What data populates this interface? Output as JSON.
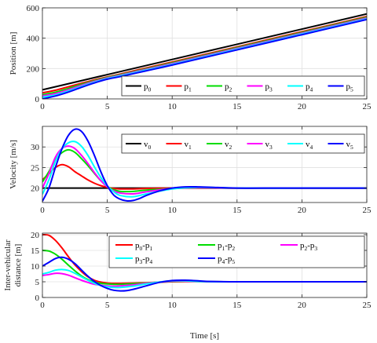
{
  "chart_data": [
    {
      "type": "line",
      "ylabel": "Position [m]",
      "xlabel": "",
      "xlim": [
        0,
        25
      ],
      "ylim": [
        0,
        600
      ],
      "xticks": [
        0,
        5,
        10,
        15,
        20,
        25
      ],
      "yticks": [
        0,
        200,
        400,
        600
      ],
      "grid": true,
      "legend_placement": "bottom-right",
      "legend_layout": "row",
      "series": [
        {
          "name": "p",
          "sub": "0",
          "color": "#000000",
          "x": [
            0,
            5,
            25
          ],
          "y": [
            60,
            160,
            560
          ]
        },
        {
          "name": "p",
          "sub": "1",
          "color": "#ff0000",
          "x": [
            0,
            1,
            2,
            3,
            4,
            5,
            6,
            8,
            10,
            15,
            20,
            25
          ],
          "y": [
            40,
            57,
            80,
            103,
            125,
            145,
            164,
            204,
            243,
            343,
            443,
            543
          ]
        },
        {
          "name": "p",
          "sub": "2",
          "color": "#00dd00",
          "x": [
            0,
            1,
            2,
            3,
            4,
            5,
            6,
            8,
            10,
            15,
            20,
            25
          ],
          "y": [
            28,
            44,
            69,
            96,
            120,
            142,
            160,
            199,
            238,
            338,
            438,
            538
          ]
        },
        {
          "name": "p",
          "sub": "3",
          "color": "#ff00ff",
          "x": [
            0,
            1,
            2,
            3,
            4,
            5,
            6,
            8,
            10,
            15,
            20,
            25
          ],
          "y": [
            20,
            35,
            60,
            89,
            115,
            138,
            156,
            195,
            233,
            333,
            433,
            533
          ]
        },
        {
          "name": "p",
          "sub": "4",
          "color": "#00ffff",
          "x": [
            0,
            1,
            2,
            3,
            4,
            5,
            6,
            8,
            10,
            15,
            20,
            25
          ],
          "y": [
            12,
            26,
            52,
            82,
            110,
            134,
            152,
            190,
            228,
            328,
            428,
            528
          ]
        },
        {
          "name": "p",
          "sub": "5",
          "color": "#0000ff",
          "x": [
            0,
            1,
            2,
            3,
            4,
            5,
            6,
            8,
            10,
            15,
            20,
            25
          ],
          "y": [
            0,
            19,
            45,
            76,
            105,
            130,
            147,
            185,
            223,
            323,
            423,
            523
          ]
        }
      ]
    },
    {
      "type": "line",
      "ylabel": "Velocity [m/s]",
      "xlabel": "",
      "xlim": [
        0,
        25
      ],
      "ylim": [
        16.5,
        35
      ],
      "xticks": [
        0,
        5,
        10,
        15,
        20,
        25
      ],
      "yticks": [
        20,
        25,
        30
      ],
      "grid": true,
      "legend_placement": "top-right",
      "legend_layout": "row",
      "series": [
        {
          "name": "v",
          "sub": "0",
          "color": "#000000",
          "x": [
            0,
            25
          ],
          "y": [
            20,
            20
          ]
        },
        {
          "name": "v",
          "sub": "1",
          "color": "#ff0000",
          "x": [
            0,
            0.5,
            1,
            1.5,
            2,
            2.5,
            3,
            3.5,
            4,
            4.5,
            5,
            5.5,
            6,
            7,
            8,
            10,
            12,
            15,
            20,
            25
          ],
          "y": [
            22,
            23.5,
            25,
            25.7,
            25.2,
            24,
            23,
            22,
            21.2,
            20.6,
            20.2,
            19.9,
            19.8,
            19.8,
            19.9,
            20,
            20,
            20,
            20,
            20
          ]
        },
        {
          "name": "v",
          "sub": "2",
          "color": "#00dd00",
          "x": [
            0,
            0.5,
            1,
            1.5,
            2,
            2.5,
            3,
            3.5,
            4,
            4.5,
            5,
            5.5,
            6,
            7,
            8,
            10,
            12,
            15,
            20,
            25
          ],
          "y": [
            21.5,
            24,
            27,
            28.6,
            29.3,
            28.7,
            27.2,
            25.5,
            23.6,
            21.8,
            20.4,
            19.6,
            19.2,
            19.2,
            19.5,
            19.9,
            20.1,
            20,
            20,
            20
          ]
        },
        {
          "name": "v",
          "sub": "3",
          "color": "#ff00ff",
          "x": [
            0,
            0.5,
            1,
            1.5,
            2,
            2.5,
            3,
            3.5,
            4,
            4.5,
            5,
            5.5,
            6,
            7,
            8,
            10,
            12,
            15,
            20,
            25
          ],
          "y": [
            20,
            23.5,
            27.5,
            29.6,
            30.2,
            29.6,
            28,
            26,
            23.8,
            21.8,
            20.3,
            19.3,
            18.8,
            18.6,
            19.1,
            19.9,
            20.1,
            20,
            20,
            20
          ]
        },
        {
          "name": "v",
          "sub": "4",
          "color": "#00ffff",
          "x": [
            0,
            0.5,
            1,
            1.5,
            2,
            2.5,
            3,
            3.5,
            4,
            4.5,
            5,
            5.5,
            6,
            7,
            8,
            10,
            12,
            15,
            20,
            25
          ],
          "y": [
            18.5,
            22,
            26.5,
            29.5,
            31,
            31.3,
            30.2,
            28,
            25.2,
            22.6,
            20.5,
            19.1,
            18.2,
            17.9,
            18.6,
            19.8,
            20.2,
            20,
            20,
            20
          ]
        },
        {
          "name": "v",
          "sub": "5",
          "color": "#0000ff",
          "x": [
            0,
            0.5,
            1,
            1.5,
            2,
            2.5,
            3,
            3.5,
            4,
            4.5,
            5,
            5.5,
            6,
            6.5,
            7,
            7.5,
            8,
            9,
            10,
            11,
            12,
            13,
            15,
            18,
            20,
            25
          ],
          "y": [
            16.8,
            20,
            25,
            29.5,
            32.8,
            34.3,
            33.8,
            31.5,
            28,
            24,
            20.6,
            18.3,
            17.3,
            16.9,
            17,
            17.5,
            18.2,
            19.3,
            20,
            20.3,
            20.3,
            20.2,
            20,
            20,
            20,
            20
          ]
        }
      ]
    },
    {
      "type": "line",
      "ylabel": "Inter-vehicular distance [m]",
      "xlabel": "Time [s]",
      "xlim": [
        0,
        25
      ],
      "ylim": [
        0,
        20.5
      ],
      "xticks": [
        0,
        5,
        10,
        15,
        20,
        25
      ],
      "yticks": [
        0,
        5,
        10,
        15,
        20
      ],
      "grid": true,
      "legend_placement": "top-right",
      "legend_layout": "grid-3x2",
      "series": [
        {
          "name": "p",
          "sub": "0",
          "name2": "-p",
          "sub2": "1",
          "color": "#ff0000",
          "x": [
            0,
            0.5,
            1,
            1.5,
            2,
            2.5,
            3,
            3.5,
            4,
            4.5,
            5,
            5.5,
            6,
            7,
            8,
            9,
            10,
            11,
            12,
            14,
            15,
            20,
            25
          ],
          "y": [
            20,
            19.8,
            18.2,
            15.8,
            13,
            10.4,
            8.3,
            6.6,
            5.5,
            4.9,
            4.6,
            4.5,
            4.5,
            4.6,
            4.7,
            4.85,
            5,
            5.05,
            5.05,
            5,
            5,
            5,
            5
          ]
        },
        {
          "name": "p",
          "sub": "1",
          "name2": "-p",
          "sub2": "2",
          "color": "#00dd00",
          "x": [
            0,
            0.5,
            1,
            1.5,
            2,
            2.5,
            3,
            3.5,
            4,
            4.5,
            5,
            5.5,
            6,
            7,
            8,
            9,
            10,
            11,
            12,
            14,
            15,
            20,
            25
          ],
          "y": [
            15,
            14.8,
            13.8,
            12.2,
            10.3,
            8.5,
            6.9,
            5.7,
            4.9,
            4.5,
            4.3,
            4.2,
            4.2,
            4.4,
            4.6,
            4.9,
            5.1,
            5.2,
            5.1,
            5,
            5,
            5,
            5
          ]
        },
        {
          "name": "p",
          "sub": "2",
          "name2": "-p",
          "sub2": "3",
          "color": "#ff00ff",
          "x": [
            0,
            0.5,
            1,
            1.5,
            2,
            2.5,
            3,
            3.5,
            4,
            4.5,
            5,
            5.5,
            6,
            7,
            8,
            9,
            10,
            11,
            12,
            14,
            15,
            20,
            25
          ],
          "y": [
            7,
            7.3,
            7.7,
            7.6,
            7.1,
            6.3,
            5.5,
            4.8,
            4.2,
            3.9,
            3.7,
            3.6,
            3.7,
            4,
            4.5,
            4.9,
            5.2,
            5.2,
            5.1,
            5,
            5,
            5,
            5
          ]
        },
        {
          "name": "p",
          "sub": "3",
          "name2": "-p",
          "sub2": "4",
          "color": "#00ffff",
          "x": [
            0,
            0.5,
            1,
            1.5,
            2,
            2.5,
            3,
            3.5,
            4,
            4.5,
            5,
            5.5,
            6,
            7,
            8,
            9,
            10,
            11,
            12,
            14,
            15,
            20,
            25
          ],
          "y": [
            7.5,
            8,
            8.7,
            8.9,
            8.6,
            7.7,
            6.6,
            5.5,
            4.5,
            3.8,
            3.4,
            3.2,
            3.2,
            3.6,
            4.3,
            4.9,
            5.3,
            5.3,
            5.1,
            5,
            5,
            5,
            5
          ]
        },
        {
          "name": "p",
          "sub": "4",
          "name2": "-p",
          "sub2": "5",
          "color": "#0000ff",
          "x": [
            0,
            0.5,
            1,
            1.5,
            2,
            2.5,
            3,
            3.5,
            4,
            4.5,
            5,
            5.5,
            6,
            6.5,
            7,
            8,
            9,
            10,
            11,
            12,
            13,
            15,
            20,
            25
          ],
          "y": [
            10,
            11.2,
            12.4,
            12.8,
            12.2,
            10.8,
            8.8,
            6.8,
            5.1,
            3.8,
            2.9,
            2.3,
            2.1,
            2.2,
            2.6,
            3.7,
            4.8,
            5.4,
            5.5,
            5.3,
            5.1,
            5,
            5,
            5
          ]
        }
      ]
    }
  ]
}
